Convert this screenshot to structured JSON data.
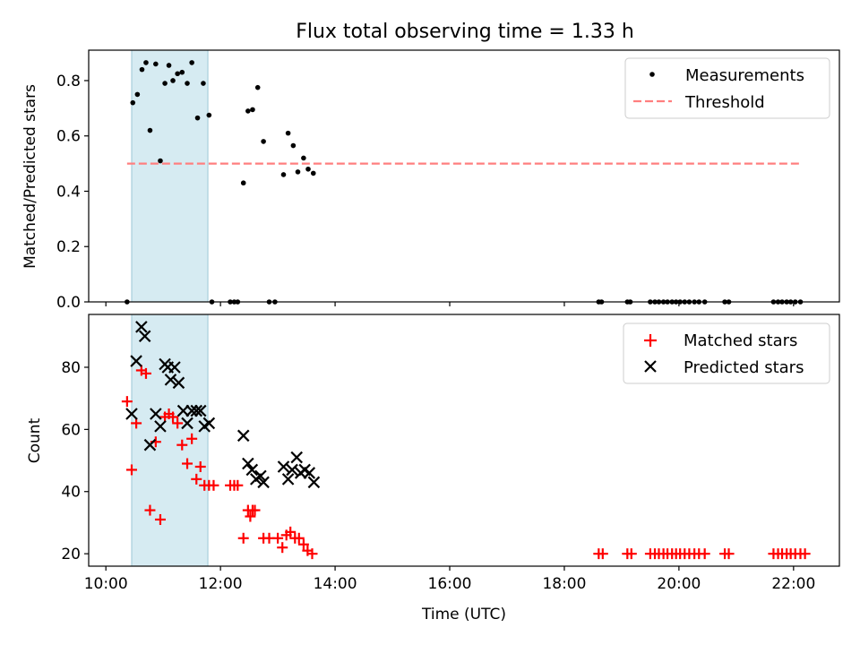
{
  "chart_data": {
    "type": "scatter",
    "title": "Flux total observing time = 1.33 h",
    "xlabel": "Time (UTC)",
    "xlim_hours": [
      9.7,
      22.8
    ],
    "x_ticks": [
      "10:00",
      "12:00",
      "14:00",
      "16:00",
      "18:00",
      "20:00",
      "22:00"
    ],
    "highlight_span_hours": [
      10.45,
      11.78
    ],
    "highlight_color": "#add8e6",
    "top": {
      "ylabel": "Matched/Predicted stars",
      "ylim": [
        0,
        0.91
      ],
      "y_ticks": [
        "0.0",
        "0.2",
        "0.4",
        "0.6",
        "0.8"
      ],
      "legend": {
        "placement": "top-right",
        "measurements_label": "Measurements",
        "threshold_label": "Threshold"
      },
      "threshold": {
        "value": 0.5,
        "x_range_hours": [
          10.37,
          22.13
        ],
        "color": "#ff7f7f"
      },
      "measurements": {
        "x": [
          10.37,
          10.47,
          10.55,
          10.63,
          10.7,
          10.77,
          10.87,
          10.95,
          11.03,
          11.1,
          11.17,
          11.25,
          11.33,
          11.42,
          11.5,
          11.6,
          11.7,
          11.8,
          11.85,
          12.17,
          12.24,
          12.3,
          12.4,
          12.48,
          12.56,
          12.65,
          12.75,
          12.85,
          12.95,
          13.1,
          13.18,
          13.27,
          13.35,
          13.45,
          13.53,
          13.62,
          18.6,
          18.65,
          19.1,
          19.15,
          19.5,
          19.58,
          19.65,
          19.73,
          19.8,
          19.88,
          19.95,
          20.02,
          20.1,
          20.18,
          20.27,
          20.35,
          20.45,
          20.8,
          20.87,
          21.65,
          21.73,
          21.8,
          21.88,
          21.95,
          22.03,
          22.12
        ],
        "y": [
          0.0,
          0.72,
          0.75,
          0.84,
          0.865,
          0.62,
          0.86,
          0.51,
          0.79,
          0.855,
          0.8,
          0.825,
          0.83,
          0.79,
          0.865,
          0.665,
          0.79,
          0.675,
          0.0,
          0.0,
          0.0,
          0.0,
          0.43,
          0.69,
          0.695,
          0.775,
          0.58,
          0.0,
          0.0,
          0.46,
          0.61,
          0.565,
          0.47,
          0.52,
          0.48,
          0.465,
          0.0,
          0.0,
          0.0,
          0.0,
          0.0,
          0.0,
          0.0,
          0.0,
          0.0,
          0.0,
          0.0,
          0.0,
          0.0,
          0.0,
          0.0,
          0.0,
          0.0,
          0.0,
          0.0,
          0.0,
          0.0,
          0.0,
          0.0,
          0.0,
          0.0,
          0.0
        ]
      }
    },
    "bottom": {
      "ylabel": "Count",
      "ylim": [
        16,
        97
      ],
      "y_ticks": [
        "20",
        "40",
        "60",
        "80"
      ],
      "legend": {
        "placement": "top-right",
        "matched_label": "Matched stars",
        "predicted_label": "Predicted stars"
      },
      "matched": {
        "color": "#ff0000",
        "x": [
          10.37,
          10.45,
          10.53,
          10.62,
          10.7,
          10.77,
          10.87,
          10.95,
          11.03,
          11.1,
          11.17,
          11.25,
          11.33,
          11.42,
          11.5,
          11.58,
          11.65,
          11.72,
          11.8,
          11.88,
          12.17,
          12.24,
          12.3,
          12.4,
          12.48,
          12.52,
          12.56,
          12.6,
          12.75,
          12.85,
          13.0,
          13.08,
          13.15,
          13.22,
          13.3,
          13.37,
          13.45,
          13.52,
          13.6,
          18.6,
          18.67,
          19.1,
          19.17,
          19.5,
          19.58,
          19.65,
          19.73,
          19.8,
          19.88,
          19.95,
          20.02,
          20.1,
          20.18,
          20.27,
          20.35,
          20.45,
          20.8,
          20.87,
          21.65,
          21.73,
          21.8,
          21.88,
          21.95,
          22.03,
          22.12,
          22.2
        ],
        "y": [
          69,
          47,
          62,
          79,
          78,
          34,
          56,
          31,
          64,
          65,
          64,
          62,
          55,
          49,
          57,
          44,
          48,
          42,
          42,
          42,
          42,
          42,
          42,
          25,
          34,
          32,
          34,
          34,
          25,
          25,
          25,
          22,
          26,
          27,
          25,
          25,
          23,
          21,
          20,
          20,
          20,
          20,
          20,
          20,
          20,
          20,
          20,
          20,
          20,
          20,
          20,
          20,
          20,
          20,
          20,
          20,
          20,
          20,
          20,
          20,
          20,
          20,
          20,
          20,
          20,
          20
        ]
      },
      "predicted": {
        "color": "#000000",
        "x": [
          10.45,
          10.53,
          10.62,
          10.68,
          10.77,
          10.87,
          10.95,
          11.03,
          11.08,
          11.13,
          11.2,
          11.27,
          11.35,
          11.42,
          11.5,
          11.58,
          11.65,
          11.72,
          11.8,
          12.4,
          12.48,
          12.55,
          12.62,
          12.7,
          12.75,
          13.1,
          13.18,
          13.25,
          13.33,
          13.4,
          13.47,
          13.55,
          13.63
        ],
        "y": [
          65,
          82,
          93,
          90,
          55,
          65,
          61,
          81,
          80,
          76,
          80,
          75,
          66,
          62,
          66,
          66,
          66,
          61,
          62,
          58,
          49,
          47,
          44,
          45,
          43,
          48,
          44,
          47,
          51,
          46,
          47,
          46,
          43
        ]
      }
    }
  }
}
